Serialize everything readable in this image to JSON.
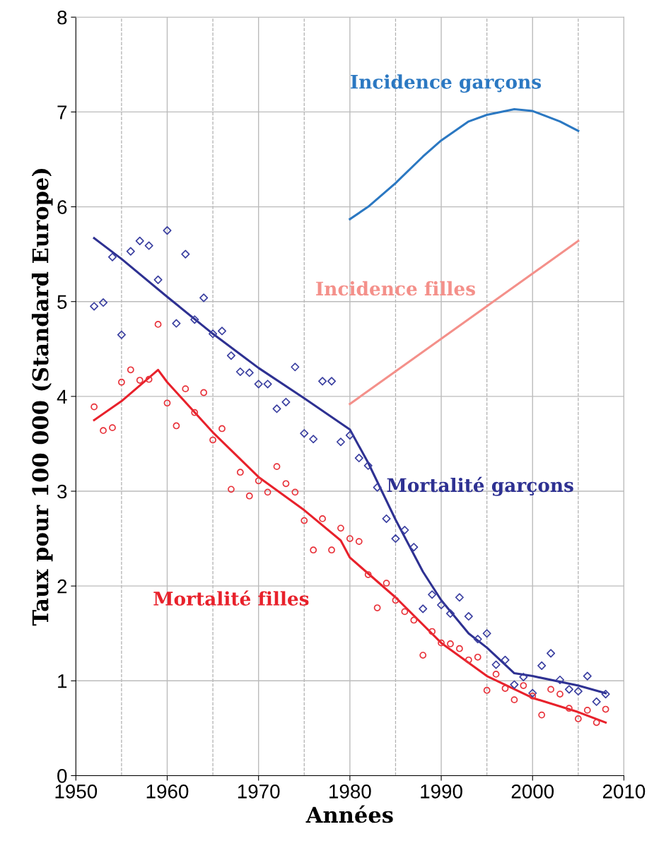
{
  "chart_data": {
    "type": "line",
    "xlabel": "Années",
    "ylabel": "Taux pour 100 000 (Standard Europe)",
    "xlim": [
      1950,
      2010
    ],
    "xticks": [
      1950,
      1960,
      1970,
      1980,
      1990,
      2000,
      2010
    ],
    "ylim": [
      0,
      8
    ],
    "yticks": [
      0,
      1,
      2,
      3,
      4,
      5,
      6,
      7,
      8
    ],
    "grid": true,
    "ref_lines": [
      {
        "axis": "x",
        "value": 1955,
        "color": "#b0b0b0",
        "line_style": "dashed"
      },
      {
        "axis": "x",
        "value": 1965,
        "color": "#b0b0b0",
        "line_style": "dashed"
      },
      {
        "axis": "x",
        "value": 1975,
        "color": "#b0b0b0",
        "line_style": "dashed"
      },
      {
        "axis": "x",
        "value": 1985,
        "color": "#b0b0b0",
        "line_style": "dashed"
      },
      {
        "axis": "x",
        "value": 1995,
        "color": "#b0b0b0",
        "line_style": "dashed"
      },
      {
        "axis": "x",
        "value": 2005,
        "color": "#b0b0b0",
        "line_style": "dashed"
      }
    ],
    "series": [
      {
        "type": "scatter",
        "marker": "diamond",
        "color": "#3a3fa0",
        "x": [
          1952,
          1953,
          1954,
          1955,
          1956,
          1957,
          1958,
          1959,
          1960,
          1961,
          1962,
          1963,
          1964,
          1965,
          1966,
          1967,
          1968,
          1969,
          1970,
          1971,
          1972,
          1973,
          1974,
          1975,
          1976,
          1977,
          1978,
          1979,
          1980,
          1981,
          1982,
          1983,
          1984,
          1985,
          1986,
          1987,
          1988,
          1989,
          1990,
          1991,
          1992,
          1993,
          1994,
          1995,
          1996,
          1997,
          1998,
          1999,
          2000,
          2001,
          2002,
          2003,
          2004,
          2005,
          2006,
          2007,
          2008
        ],
        "values": [
          4.95,
          4.99,
          5.47,
          4.65,
          5.53,
          5.64,
          5.59,
          5.23,
          5.75,
          4.77,
          5.5,
          4.81,
          5.04,
          4.66,
          4.69,
          4.43,
          4.26,
          4.25,
          4.13,
          4.13,
          3.87,
          3.94,
          4.31,
          3.61,
          3.55,
          4.16,
          4.16,
          3.52,
          3.59,
          3.35,
          3.27,
          3.04,
          2.71,
          2.5,
          2.59,
          2.41,
          1.76,
          1.91,
          1.8,
          1.71,
          1.88,
          1.68,
          1.44,
          1.5,
          1.17,
          1.22,
          0.96,
          1.04,
          0.87,
          1.16,
          1.29,
          1.01,
          0.91,
          0.89,
          1.05,
          0.78,
          0.86
        ]
      },
      {
        "type": "scatter",
        "marker": "circle",
        "color": "#e8323a",
        "x": [
          1952,
          1953,
          1954,
          1955,
          1956,
          1957,
          1958,
          1959,
          1960,
          1961,
          1962,
          1963,
          1964,
          1965,
          1966,
          1967,
          1968,
          1969,
          1970,
          1971,
          1972,
          1973,
          1974,
          1975,
          1976,
          1977,
          1978,
          1979,
          1980,
          1981,
          1982,
          1983,
          1984,
          1985,
          1986,
          1987,
          1988,
          1989,
          1990,
          1991,
          1992,
          1993,
          1994,
          1995,
          1996,
          1997,
          1998,
          1999,
          2000,
          2001,
          2002,
          2003,
          2004,
          2005,
          2006,
          2007,
          2008
        ],
        "values": [
          3.89,
          3.64,
          3.67,
          4.15,
          4.28,
          4.17,
          4.18,
          4.76,
          3.93,
          3.69,
          4.08,
          3.83,
          4.04,
          3.54,
          3.66,
          3.02,
          3.2,
          2.95,
          3.11,
          2.99,
          3.26,
          3.08,
          2.99,
          2.69,
          2.38,
          2.71,
          2.38,
          2.61,
          2.5,
          2.47,
          2.12,
          1.77,
          2.03,
          1.85,
          1.73,
          1.64,
          1.27,
          1.52,
          1.4,
          1.39,
          1.34,
          1.22,
          1.25,
          0.9,
          1.07,
          0.92,
          0.8,
          0.95,
          0.84,
          0.64,
          0.91,
          0.86,
          0.71,
          0.6,
          0.69,
          0.56,
          0.7
        ]
      },
      {
        "name": "Incidence garçons",
        "color": "#2b78c2",
        "x": [
          1980,
          1982,
          1985,
          1988,
          1990,
          1993,
          1995,
          1998,
          2000,
          2003,
          2005
        ],
        "values": [
          5.87,
          6.0,
          6.25,
          6.53,
          6.7,
          6.9,
          6.97,
          7.03,
          7.01,
          6.9,
          6.8
        ]
      },
      {
        "name": "Incidence filles",
        "color": "#f4908a",
        "x": [
          1980,
          2005
        ],
        "values": [
          3.92,
          5.64
        ]
      },
      {
        "name": "Mortalité garçons",
        "color": "#2e3192",
        "x": [
          1952,
          1955,
          1960,
          1965,
          1970,
          1975,
          1980,
          1982,
          1985,
          1988,
          1990,
          1993,
          1995,
          1998,
          2000,
          2005,
          2008
        ],
        "values": [
          5.67,
          5.45,
          5.05,
          4.66,
          4.3,
          3.98,
          3.65,
          3.3,
          2.7,
          2.15,
          1.85,
          1.5,
          1.35,
          1.08,
          1.05,
          0.95,
          0.87
        ]
      },
      {
        "name": "Mortalité filles",
        "color": "#e8212b",
        "x": [
          1952,
          1955,
          1959,
          1960,
          1965,
          1970,
          1975,
          1979,
          1980,
          1985,
          1990,
          1995,
          2000,
          2005,
          2008
        ],
        "values": [
          3.75,
          3.95,
          4.28,
          4.15,
          3.62,
          3.15,
          2.8,
          2.48,
          2.3,
          1.88,
          1.4,
          1.05,
          0.82,
          0.67,
          0.56
        ]
      }
    ]
  }
}
